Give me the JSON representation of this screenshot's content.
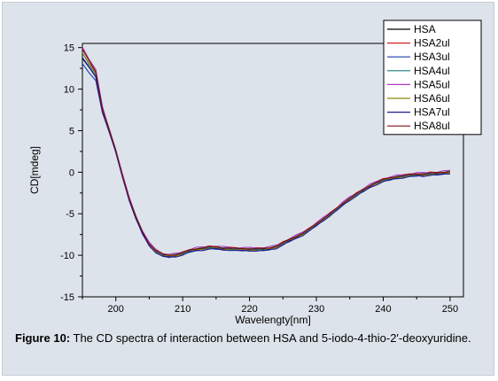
{
  "figure": {
    "caption_label": "Figure 10:",
    "caption_text": " The CD spectra of interaction between HSA and 5-iodo-4-thio-2'-deoxyuridine."
  },
  "chart_data": {
    "type": "line",
    "title": "",
    "xlabel": "Wavelengty[nm]",
    "ylabel": "CD[mdeg]",
    "xlim": [
      195,
      252
    ],
    "ylim": [
      -15,
      15.5
    ],
    "x_ticks": [
      200,
      210,
      220,
      230,
      240,
      250
    ],
    "y_ticks": [
      15,
      10,
      5,
      0,
      -5,
      -10,
      -15
    ],
    "grid": false,
    "legend_position": "top-right",
    "base_curve": {
      "x": [
        195,
        196,
        197,
        198,
        199,
        200,
        201,
        202,
        203,
        204,
        205,
        206,
        207,
        208,
        209,
        210,
        211,
        212,
        213,
        214,
        215,
        216,
        217,
        218,
        219,
        220,
        221,
        222,
        223,
        224,
        225,
        226,
        227,
        228,
        229,
        230,
        231,
        232,
        233,
        234,
        235,
        236,
        237,
        238,
        239,
        240,
        241,
        242,
        243,
        244,
        245,
        246,
        247,
        248,
        249,
        250
      ],
      "y": [
        14.3,
        13.0,
        11.8,
        7.5,
        5.0,
        2.5,
        -0.5,
        -3.2,
        -5.5,
        -7.3,
        -8.7,
        -9.5,
        -10.0,
        -10.1,
        -10.0,
        -9.8,
        -9.5,
        -9.3,
        -9.2,
        -9.1,
        -9.1,
        -9.2,
        -9.2,
        -9.3,
        -9.3,
        -9.3,
        -9.3,
        -9.3,
        -9.2,
        -9.0,
        -8.6,
        -8.2,
        -7.8,
        -7.4,
        -6.9,
        -6.3,
        -5.7,
        -5.1,
        -4.5,
        -3.8,
        -3.2,
        -2.7,
        -2.2,
        -1.7,
        -1.3,
        -1.0,
        -0.8,
        -0.6,
        -0.5,
        -0.4,
        -0.3,
        -0.3,
        -0.2,
        -0.2,
        -0.1,
        0.0
      ]
    },
    "series": [
      {
        "name": "HSA",
        "color": "#000000",
        "offset": 0.0,
        "start_offset": -0.6
      },
      {
        "name": "HSA2ul",
        "color": "#d02020",
        "offset": 0.15,
        "start_offset": 0.3
      },
      {
        "name": "HSA3ul",
        "color": "#1a3fb0",
        "offset": -0.1,
        "start_offset": -1.2
      },
      {
        "name": "HSA4ul",
        "color": "#1a7a7a",
        "offset": 0.05,
        "start_offset": 0.0
      },
      {
        "name": "HSA5ul",
        "color": "#b03ac0",
        "offset": 0.2,
        "start_offset": 0.6
      },
      {
        "name": "HSA6ul",
        "color": "#8a8a10",
        "offset": -0.05,
        "start_offset": 0.2
      },
      {
        "name": "HSA7ul",
        "color": "#1a1a90",
        "offset": -0.15,
        "start_offset": -0.3
      },
      {
        "name": "HSA8ul",
        "color": "#7a1010",
        "offset": 0.1,
        "start_offset": 0.4
      }
    ]
  }
}
